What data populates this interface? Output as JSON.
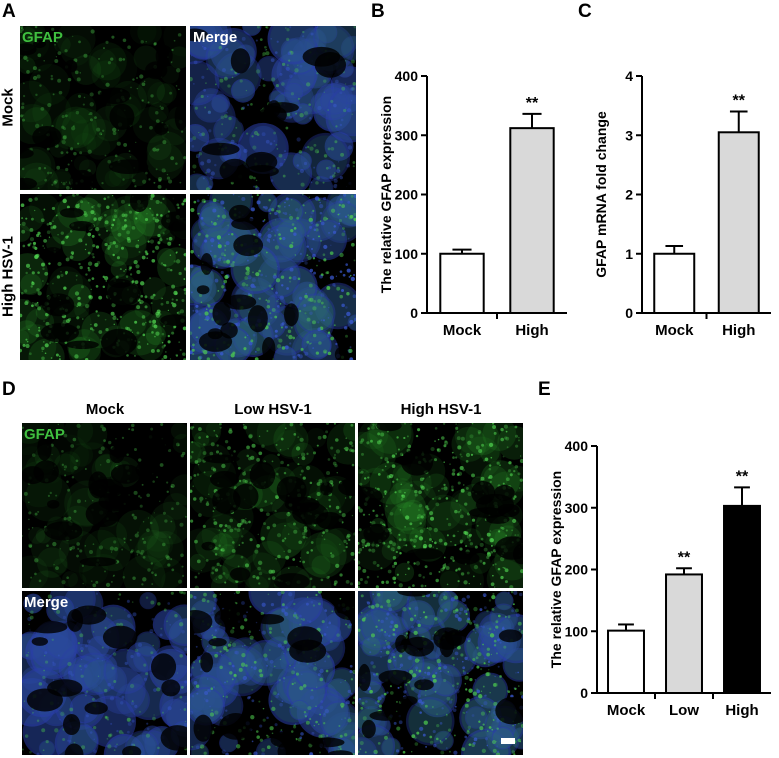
{
  "panels": {
    "A": {
      "label": "A",
      "col_labels": [
        "GFAP",
        "Merge"
      ],
      "row_labels": [
        "Mock",
        "High HSV-1"
      ]
    },
    "B": {
      "label": "B"
    },
    "C": {
      "label": "C"
    },
    "D": {
      "label": "D",
      "col_labels": [
        "Mock",
        "Low HSV-1",
        "High HSV-1"
      ],
      "row_labels": [
        "GFAP",
        "Merge"
      ]
    },
    "E": {
      "label": "E"
    }
  },
  "colors": {
    "gfap": "#2e9e2e",
    "merge_blue": "#2a3ea8",
    "bar_mock": "#ffffff",
    "bar_low": "#d9d9d9",
    "bar_high_B": "#d9d9d9",
    "bar_high_E": "#000000"
  },
  "chart_data": [
    {
      "id": "B",
      "type": "bar",
      "categories": [
        "Mock",
        "High"
      ],
      "values": [
        100,
        312
      ],
      "errors": [
        7,
        24
      ],
      "annotations": [
        "",
        "**"
      ],
      "ylabel": "The relative GFAP expression",
      "ylim": [
        0,
        400
      ],
      "yticks": [
        0,
        100,
        200,
        300,
        400
      ],
      "bar_colors": [
        "#ffffff",
        "#d9d9d9"
      ]
    },
    {
      "id": "C",
      "type": "bar",
      "categories": [
        "Mock",
        "High"
      ],
      "values": [
        1.0,
        3.05
      ],
      "errors": [
        0.13,
        0.35
      ],
      "annotations": [
        "",
        "**"
      ],
      "ylabel": "GFAP mRNA fold change",
      "ylim": [
        0,
        4
      ],
      "yticks": [
        0,
        1,
        2,
        3,
        4
      ],
      "bar_colors": [
        "#ffffff",
        "#d9d9d9"
      ]
    },
    {
      "id": "E",
      "type": "bar",
      "categories": [
        "Mock",
        "Low",
        "High"
      ],
      "values": [
        101,
        192,
        303
      ],
      "errors": [
        10,
        10,
        30
      ],
      "annotations": [
        "",
        "**",
        "**"
      ],
      "ylabel": "The relative GFAP expression",
      "ylim": [
        0,
        400
      ],
      "yticks": [
        0,
        100,
        200,
        300,
        400
      ],
      "bar_colors": [
        "#ffffff",
        "#d9d9d9",
        "#000000"
      ]
    }
  ]
}
